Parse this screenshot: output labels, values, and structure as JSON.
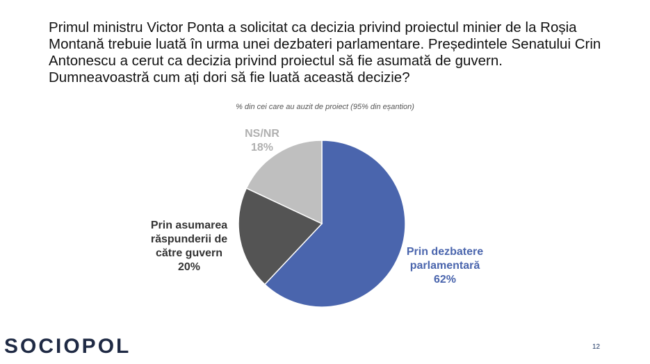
{
  "chart_data": {
    "type": "pie",
    "title": "Primul ministru Victor Ponta a solicitat ca decizia privind proiectul minier de la Roșia Montană trebuie luată în urma unei dezbateri parlamentare. Președintele Senatului Crin Antonescu a cerut ca decizia privind proiectul să fie asumată de guvern. Dumneavoastră cum ați dori să fie luată această decizie?",
    "subtitle": "% din cei care au auzit de proiect (95% din eșantion)",
    "categories": [
      "Prin dezbatere parlamentară",
      "Prin asumarea răspunderii de către guvern",
      "NS/NR"
    ],
    "values": [
      62,
      20,
      18
    ],
    "value_labels": [
      "62%",
      "20%",
      "18%"
    ],
    "colors": [
      "#4a65ad",
      "#545454",
      "#bfbfbf"
    ]
  },
  "logo": "SOCIOPOL",
  "page_number": "12"
}
